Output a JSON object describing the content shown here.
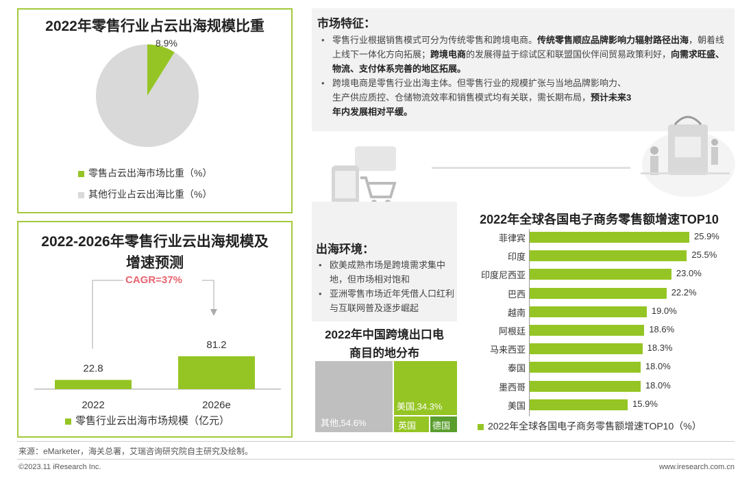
{
  "pie_panel": {
    "title": "2022年零售行业占云出海规模比重",
    "slice_label": "8.9%",
    "legend": [
      "零售占云出海市场比重（%）",
      "其他行业占云出海比重（%）"
    ]
  },
  "bar_panel": {
    "title_line1": "2022-2026年零售行业云出海规模及",
    "title_line2": "增速预测",
    "cagr": "CAGR=37%",
    "legend": "零售行业云出海市场规模（亿元）"
  },
  "market": {
    "heading": "市场特征：",
    "p1_a": "零售行业根据销售模式可分为传统零售和跨境电商。",
    "p1_b": "传统零售顺应品牌影响力辐射路径出海",
    "p1_c": "，朝着线上线下一体化方向拓展；",
    "p1_d": "跨境电商",
    "p1_e": "的发展得益于综试区和联盟国伙伴间贸易政策利好，",
    "p1_f": "向需求旺盛、物流、支付体系完善的地区拓展。",
    "p2_a": "跨境电商是零售行业出海主体。但零售行业的规模扩张与当地品牌影响力、生产供应质控、仓储物流效率和销售模式均有关联，需长期布局，",
    "p2_b": "预计未来3年内发展相对平缓。"
  },
  "env": {
    "heading": "出海环境：",
    "items": [
      "欧美成熟市场是跨境需求集中地，但市场相对饱和",
      "亚洲零售市场近年凭借人口红利与互联网普及逐步崛起"
    ]
  },
  "treemap": {
    "title_line1": "2022年中国跨境出口电",
    "title_line2": "商目的地分布",
    "cells": [
      {
        "label": "其他,54.6%",
        "color": "#bfbfbf"
      },
      {
        "label": "美国,34.3%",
        "color": "#95c524"
      },
      {
        "label": "英国",
        "color": "#95c524"
      },
      {
        "label": "德国",
        "color": "#5a9e2e"
      }
    ]
  },
  "top10": {
    "title": "2022年全球各国电子商务零售额增速TOP10",
    "legend": "2022年全球各国电子商务零售额增速TOP10（%）"
  },
  "footer": {
    "source": "来源：eMarketer，海关总署，艾瑞咨询研究院自主研究及绘制。",
    "copyright": "©2023.11 iResearch Inc.",
    "url": "www.iresearch.com.cn"
  },
  "colors": {
    "accent": "#95c524",
    "dark_green": "#5a9e2e",
    "gray": "#d9d9d9",
    "cagr": "#e8636f"
  },
  "chart_data": [
    {
      "type": "pie",
      "title": "2022年零售行业占云出海规模比重",
      "series": [
        {
          "name": "零售占云出海市场比重（%）",
          "value": 8.9
        },
        {
          "name": "其他行业占云出海比重（%）",
          "value": 91.1
        }
      ]
    },
    {
      "type": "bar",
      "title": "2022-2026年零售行业云出海规模及增速预测",
      "categories": [
        "2022",
        "2026e"
      ],
      "series": [
        {
          "name": "零售行业云出海市场规模（亿元）",
          "values": [
            22.8,
            81.2
          ]
        }
      ],
      "value_labels": [
        "22.8",
        "81.2"
      ],
      "annotation": "CAGR=37%"
    },
    {
      "type": "bar",
      "orientation": "horizontal",
      "title": "2022年全球各国电子商务零售额增速TOP10",
      "categories": [
        "菲律宾",
        "印度",
        "印度尼西亚",
        "巴西",
        "越南",
        "阿根廷",
        "马来西亚",
        "泰国",
        "墨西哥",
        "美国"
      ],
      "series": [
        {
          "name": "2022年全球各国电子商务零售额增速TOP10（%）",
          "values": [
            25.9,
            25.5,
            23.0,
            22.2,
            19.0,
            18.6,
            18.3,
            18.0,
            18.0,
            15.9
          ]
        }
      ],
      "value_labels": [
        "25.9%",
        "25.5%",
        "23.0%",
        "22.2%",
        "19.0%",
        "18.6%",
        "18.3%",
        "18.0%",
        "18.0%",
        "15.9%"
      ]
    },
    {
      "type": "treemap",
      "title": "2022年中国跨境出口电商目的地分布",
      "categories": [
        "其他",
        "美国",
        "英国",
        "德国"
      ],
      "values": [
        54.6,
        34.3,
        null,
        null
      ]
    }
  ]
}
